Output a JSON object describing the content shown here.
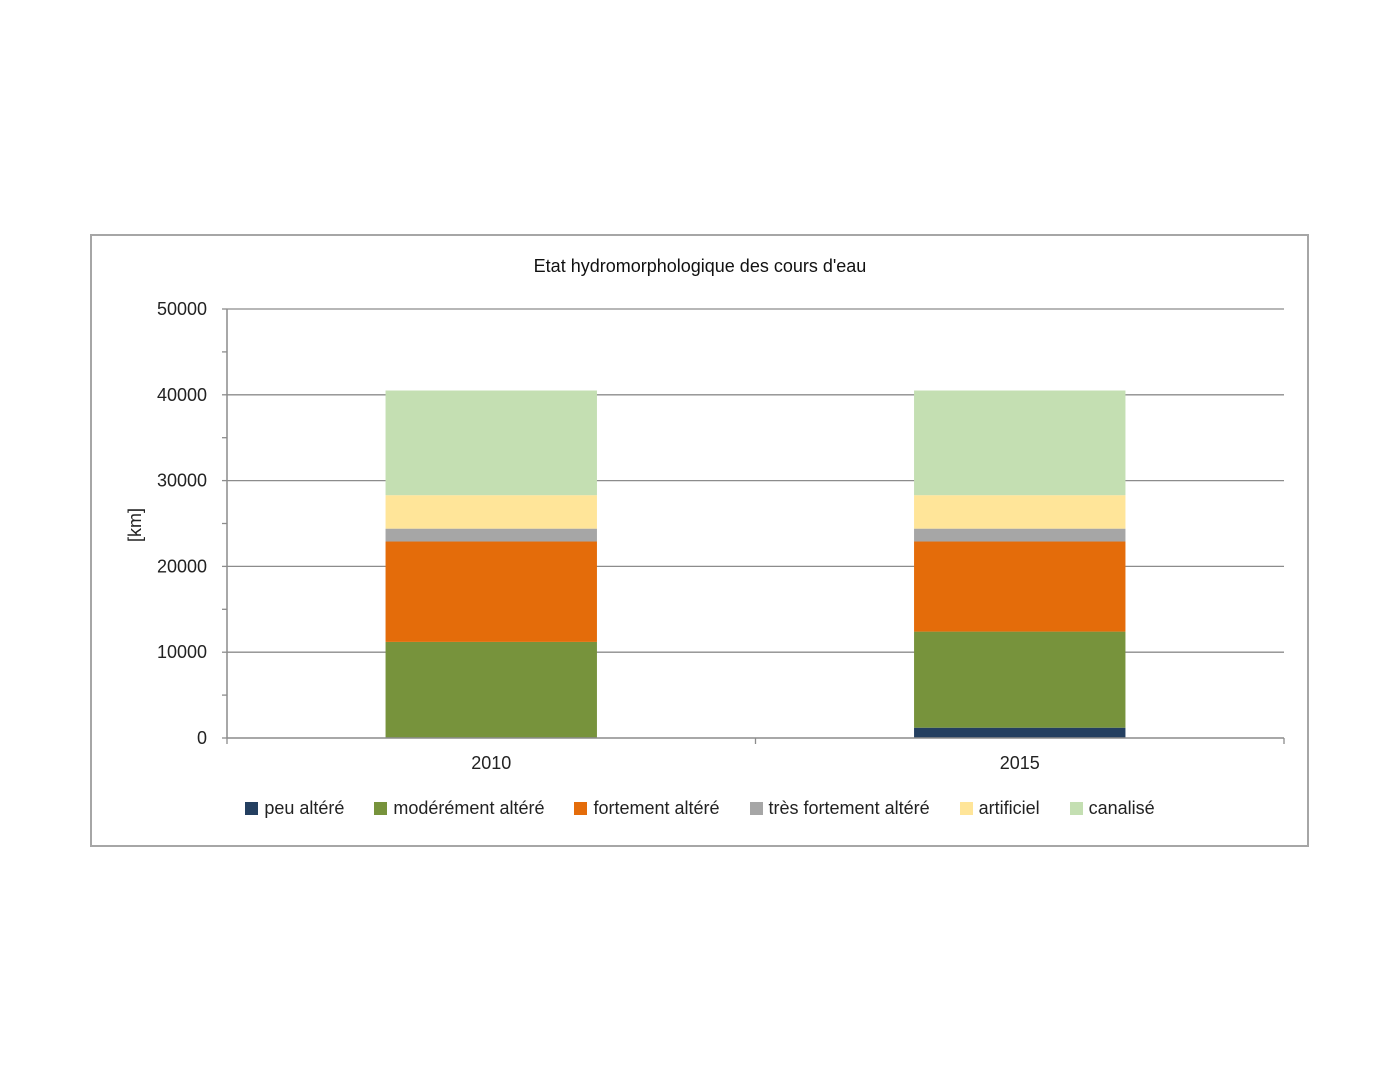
{
  "chart_data": {
    "type": "bar",
    "stacked": true,
    "title": "Etat hydromorphologique des cours d'eau",
    "ylabel": "[km]",
    "xlabel": "",
    "categories": [
      "2010",
      "2015"
    ],
    "ylim": [
      0,
      50000
    ],
    "yticks": [
      "0",
      "10000",
      "20000",
      "30000",
      "40000",
      "50000"
    ],
    "grid": true,
    "legend_position": "bottom",
    "series": [
      {
        "name": "peu altéré",
        "color": "#243f60",
        "values": [
          0,
          1200
        ]
      },
      {
        "name": "modérément altéré",
        "color": "#77933c",
        "values": [
          11200,
          11200
        ]
      },
      {
        "name": "fortement altéré",
        "color": "#e46c0a",
        "values": [
          11700,
          10500
        ]
      },
      {
        "name": "très fortement altéré",
        "color": "#a6a6a6",
        "values": [
          1500,
          1500
        ]
      },
      {
        "name": "artificiel",
        "color": "#ffe599",
        "values": [
          3900,
          3900
        ]
      },
      {
        "name": "canalisé",
        "color": "#c4dfb2",
        "values": [
          12200,
          12200
        ]
      }
    ]
  }
}
